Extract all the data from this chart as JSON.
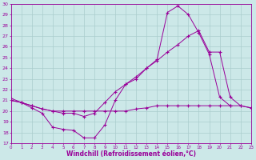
{
  "xlabel": "Windchill (Refroidissement éolien,°C)",
  "bg_color": "#cce8e8",
  "line_color": "#990099",
  "grid_color": "#aacccc",
  "xlim": [
    0,
    23
  ],
  "ylim": [
    17,
    30
  ],
  "xticks": [
    0,
    1,
    2,
    3,
    4,
    5,
    6,
    7,
    8,
    9,
    10,
    11,
    12,
    13,
    14,
    15,
    16,
    17,
    18,
    19,
    20,
    21,
    22,
    23
  ],
  "yticks": [
    17,
    18,
    19,
    20,
    21,
    22,
    23,
    24,
    25,
    26,
    27,
    28,
    29,
    30
  ],
  "series": [
    {
      "x": [
        0,
        1,
        2,
        3,
        4,
        5,
        6,
        7,
        8,
        9,
        10,
        11,
        12,
        13,
        14,
        15,
        16,
        17,
        18,
        19,
        20,
        21
      ],
      "y": [
        21.0,
        20.8,
        20.3,
        19.8,
        18.5,
        18.3,
        18.2,
        17.5,
        17.5,
        18.7,
        21.0,
        22.5,
        23.0,
        24.0,
        24.8,
        29.2,
        29.8,
        29.0,
        27.3,
        25.3,
        21.3,
        20.5
      ]
    },
    {
      "x": [
        0,
        1,
        2,
        3,
        4,
        5,
        6,
        7,
        8,
        9,
        10,
        11,
        12,
        13,
        14,
        15,
        16,
        17,
        18,
        19,
        20,
        21,
        22,
        23
      ],
      "y": [
        21.0,
        20.8,
        20.5,
        20.2,
        20.0,
        20.0,
        20.0,
        20.0,
        20.0,
        20.0,
        20.0,
        20.0,
        20.2,
        20.3,
        20.5,
        20.5,
        20.5,
        20.5,
        20.5,
        20.5,
        20.5,
        20.5,
        20.5,
        20.3
      ]
    },
    {
      "x": [
        0,
        1,
        2,
        3,
        4,
        5,
        6,
        7,
        8,
        9,
        10,
        11,
        12,
        13,
        14,
        15,
        16,
        17,
        18,
        19,
        20,
        21,
        22,
        23
      ],
      "y": [
        21.2,
        20.8,
        20.5,
        20.2,
        20.0,
        19.8,
        19.8,
        19.5,
        19.8,
        20.8,
        21.8,
        22.5,
        23.2,
        24.0,
        24.7,
        25.5,
        26.2,
        27.0,
        27.5,
        25.5,
        25.5,
        21.3,
        20.5,
        20.3
      ]
    }
  ]
}
